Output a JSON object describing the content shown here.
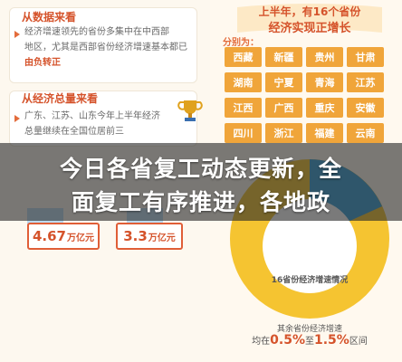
{
  "left": {
    "section1_title": "从数据来看",
    "section1_lines": [
      "经济增速领先的省份多集中在中西部",
      "地区，尤其是西部省份经济增速基本都已",
      "由负转正"
    ],
    "section2_title": "从经济总量来看",
    "section2_lines": [
      "广东、江苏、山东今年上半年经济",
      "总量继续在全国位居前三"
    ],
    "value1": "4.67",
    "value1_unit": "万亿元",
    "value2": "3.3",
    "value2_unit": "万亿元"
  },
  "right": {
    "title_line1": "上半年，有16个省份",
    "title_line2": "经济实现正增长",
    "sub_label": "分别为：",
    "provinces": [
      "西藏",
      "新疆",
      "贵州",
      "甘肃",
      "湖南",
      "宁夏",
      "青海",
      "江苏",
      "江西",
      "广西",
      "重庆",
      "安徽",
      "四川",
      "浙江",
      "福建",
      "云南"
    ],
    "pie_center_label": "16省份经济增速情况",
    "footer_line1": "其余省份经济增速",
    "footer_prefix": "均在",
    "footer_v1": "0.5%",
    "footer_mid": "至",
    "footer_v2": "1.5%",
    "footer_suffix": "区间"
  },
  "banner": {
    "line1": "今日各省复工动态更新，全",
    "line2": "面复工有序推进，各地政"
  },
  "colors": {
    "accent": "#d5532b",
    "orange": "#f0a53a",
    "pie_blue": "#3aa1d8",
    "pie_yellow": "#f5c431"
  }
}
